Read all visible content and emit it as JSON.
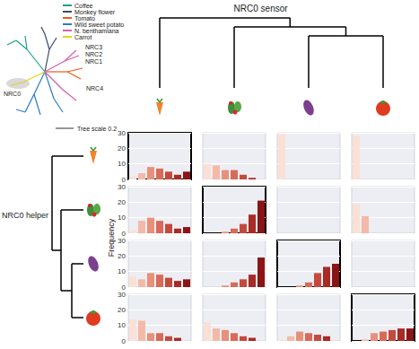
{
  "tree": {
    "legend": [
      {
        "name": "Coffee",
        "color": "#19a186"
      },
      {
        "name": "Monkey flower",
        "color": "#3b4a63"
      },
      {
        "name": "Tomato",
        "color": "#ea5a1c"
      },
      {
        "name": "Wild sweet potato",
        "color": "#2b7cc2"
      },
      {
        "name": "N. benthamiana",
        "color": "#d55fae"
      },
      {
        "name": "Carrot",
        "color": "#e5d317"
      }
    ],
    "labels": [
      "NRC0",
      "NRC3",
      "NRC2",
      "NRC1",
      "NRC4"
    ],
    "scale_label": "Tree scale 0.2"
  },
  "column_title": "NRC0 sensor",
  "row_title": "NRC0 helper",
  "y_label": "Frequency",
  "chart_data": [
    {
      "type": "bar",
      "categories": [
        null,
        null,
        null,
        null,
        null,
        null,
        null
      ],
      "values": [
        2,
        4,
        8,
        7,
        5,
        3,
        5
      ],
      "colors": [
        "#fbe0d6",
        "#f4b9a7",
        "#e8907a",
        "#d96a58",
        "#c44a3d",
        "#a82b25",
        "#8b1515"
      ],
      "ylim": [
        0,
        30
      ],
      "yticks": [
        0,
        10,
        20,
        30
      ],
      "grid": true,
      "tick_labels": "y"
    },
    {
      "type": "bar",
      "categories": [
        null,
        null,
        null,
        null,
        null,
        null,
        null
      ],
      "values": [
        10,
        9,
        6,
        6,
        3,
        1,
        0
      ],
      "colors": [
        "#fbe0d6",
        "#f4b9a7",
        "#e8907a",
        "#d96a58",
        "#c44a3d",
        "#a82b25",
        "#8b1515"
      ],
      "ylim": [
        0,
        30
      ],
      "yticks": [
        0,
        10,
        20,
        30
      ],
      "grid": true,
      "tick_labels": false
    },
    {
      "type": "bar",
      "categories": [
        null,
        null,
        null,
        null,
        null,
        null,
        null
      ],
      "values": [
        29,
        0,
        0,
        0,
        0,
        0,
        0
      ],
      "colors": [
        "#fbe0d6",
        "#f4b9a7",
        "#e8907a",
        "#d96a58",
        "#c44a3d",
        "#a82b25",
        "#8b1515"
      ],
      "ylim": [
        0,
        30
      ],
      "yticks": [
        0,
        10,
        20,
        30
      ],
      "grid": true,
      "tick_labels": false
    },
    {
      "type": "bar",
      "categories": [
        null,
        null,
        null,
        null,
        null,
        null,
        null
      ],
      "values": [
        28,
        0,
        0,
        0,
        0,
        0,
        0
      ],
      "colors": [
        "#fbe0d6",
        "#f4b9a7",
        "#e8907a",
        "#d96a58",
        "#c44a3d",
        "#a82b25",
        "#8b1515"
      ],
      "ylim": [
        0,
        30
      ],
      "yticks": [
        0,
        10,
        20,
        30
      ],
      "grid": true,
      "tick_labels": false
    },
    {
      "type": "bar",
      "categories": [
        null,
        null,
        null,
        null,
        null,
        null,
        null
      ],
      "values": [
        2,
        8,
        10,
        8,
        6,
        3,
        4
      ],
      "colors": [
        "#fbe0d6",
        "#f4b9a7",
        "#e8907a",
        "#d96a58",
        "#c44a3d",
        "#a82b25",
        "#8b1515"
      ],
      "ylim": [
        0,
        30
      ],
      "yticks": [
        0,
        10,
        20,
        30
      ],
      "grid": true,
      "tick_labels": "y"
    },
    {
      "type": "bar",
      "categories": [
        null,
        null,
        null,
        null,
        null,
        null,
        null
      ],
      "values": [
        0,
        0,
        1,
        3,
        6,
        12,
        21
      ],
      "colors": [
        "#fbe0d6",
        "#f4b9a7",
        "#e8907a",
        "#d96a58",
        "#c44a3d",
        "#a82b25",
        "#8b1515"
      ],
      "ylim": [
        0,
        30
      ],
      "yticks": [
        0,
        10,
        20,
        30
      ],
      "grid": true,
      "tick_labels": false
    },
    {
      "type": "bar",
      "categories": [
        null,
        null,
        null,
        null,
        null,
        null,
        null
      ],
      "values": [
        0,
        0,
        0,
        0,
        0,
        0,
        0
      ],
      "colors": [
        "#fbe0d6",
        "#f4b9a7",
        "#e8907a",
        "#d96a58",
        "#c44a3d",
        "#a82b25",
        "#8b1515"
      ],
      "ylim": [
        0,
        30
      ],
      "yticks": [
        0,
        10,
        20,
        30
      ],
      "grid": true,
      "tick_labels": false
    },
    {
      "type": "bar",
      "categories": [
        null,
        null,
        null,
        null,
        null,
        null,
        null
      ],
      "values": [
        19,
        11,
        0,
        0,
        0,
        0,
        0
      ],
      "colors": [
        "#fbe0d6",
        "#f4b9a7",
        "#e8907a",
        "#d96a58",
        "#c44a3d",
        "#a82b25",
        "#8b1515"
      ],
      "ylim": [
        0,
        30
      ],
      "yticks": [
        0,
        10,
        20,
        30
      ],
      "grid": true,
      "tick_labels": false
    },
    {
      "type": "bar",
      "categories": [
        null,
        null,
        null,
        null,
        null,
        null,
        null
      ],
      "values": [
        7,
        5,
        9,
        8,
        6,
        4,
        5
      ],
      "colors": [
        "#fbe0d6",
        "#f4b9a7",
        "#e8907a",
        "#d96a58",
        "#c44a3d",
        "#a82b25",
        "#8b1515"
      ],
      "ylim": [
        0,
        30
      ],
      "yticks": [
        0,
        10,
        20,
        30
      ],
      "grid": true,
      "tick_labels": "y"
    },
    {
      "type": "bar",
      "categories": [
        null,
        null,
        null,
        null,
        null,
        null,
        null
      ],
      "values": [
        0,
        0,
        1,
        3,
        5,
        8,
        19
      ],
      "colors": [
        "#fbe0d6",
        "#f4b9a7",
        "#e8907a",
        "#d96a58",
        "#c44a3d",
        "#a82b25",
        "#8b1515"
      ],
      "ylim": [
        0,
        30
      ],
      "yticks": [
        0,
        10,
        20,
        30
      ],
      "grid": true,
      "tick_labels": false
    },
    {
      "type": "bar",
      "categories": [
        null,
        null,
        null,
        null,
        null,
        null,
        null
      ],
      "values": [
        0,
        0,
        1,
        3,
        9,
        13,
        15
      ],
      "colors": [
        "#fbe0d6",
        "#f4b9a7",
        "#e8907a",
        "#d96a58",
        "#c44a3d",
        "#a82b25",
        "#8b1515"
      ],
      "ylim": [
        0,
        30
      ],
      "yticks": [
        0,
        10,
        20,
        30
      ],
      "grid": true,
      "tick_labels": false
    },
    {
      "type": "bar",
      "categories": [
        null,
        null,
        null,
        null,
        null,
        null,
        null
      ],
      "values": [
        0,
        0,
        0,
        0,
        0,
        0,
        0
      ],
      "colors": [
        "#fbe0d6",
        "#f4b9a7",
        "#e8907a",
        "#d96a58",
        "#c44a3d",
        "#a82b25",
        "#8b1515"
      ],
      "ylim": [
        0,
        30
      ],
      "yticks": [
        0,
        10,
        20,
        30
      ],
      "grid": true,
      "tick_labels": false
    },
    {
      "type": "bar",
      "categories": [
        null,
        null,
        null,
        null,
        null,
        null,
        null
      ],
      "values": [
        14,
        13,
        5,
        5,
        3,
        2,
        0
      ],
      "colors": [
        "#fbe0d6",
        "#f4b9a7",
        "#e8907a",
        "#d96a58",
        "#c44a3d",
        "#a82b25",
        "#8b1515"
      ],
      "ylim": [
        0,
        30
      ],
      "yticks": [
        0,
        10,
        20,
        30
      ],
      "grid": true,
      "tick_labels": "y"
    },
    {
      "type": "bar",
      "categories": [
        null,
        null,
        null,
        null,
        null,
        null,
        null
      ],
      "values": [
        12,
        8,
        7,
        5,
        3,
        2,
        0
      ],
      "colors": [
        "#fbe0d6",
        "#f4b9a7",
        "#e8907a",
        "#d96a58",
        "#c44a3d",
        "#a82b25",
        "#8b1515"
      ],
      "ylim": [
        0,
        30
      ],
      "yticks": [
        0,
        10,
        20,
        30
      ],
      "grid": true,
      "tick_labels": false
    },
    {
      "type": "bar",
      "categories": [
        null,
        null,
        null,
        null,
        null,
        null,
        null
      ],
      "values": [
        1,
        3,
        6,
        5,
        4,
        3,
        0
      ],
      "colors": [
        "#fbe0d6",
        "#f4b9a7",
        "#e8907a",
        "#d96a58",
        "#c44a3d",
        "#a82b25",
        "#8b1515"
      ],
      "ylim": [
        0,
        30
      ],
      "yticks": [
        0,
        10,
        20,
        30
      ],
      "grid": true,
      "tick_labels": false
    },
    {
      "type": "bar",
      "categories": [
        null,
        null,
        null,
        null,
        null,
        null,
        null
      ],
      "values": [
        0,
        1,
        5,
        6,
        7,
        8,
        8
      ],
      "colors": [
        "#fbe0d6",
        "#f4b9a7",
        "#e8907a",
        "#d96a58",
        "#c44a3d",
        "#a82b25",
        "#8b1515"
      ],
      "ylim": [
        0,
        30
      ],
      "yticks": [
        0,
        10,
        20,
        30
      ],
      "grid": true,
      "tick_labels": false
    }
  ]
}
